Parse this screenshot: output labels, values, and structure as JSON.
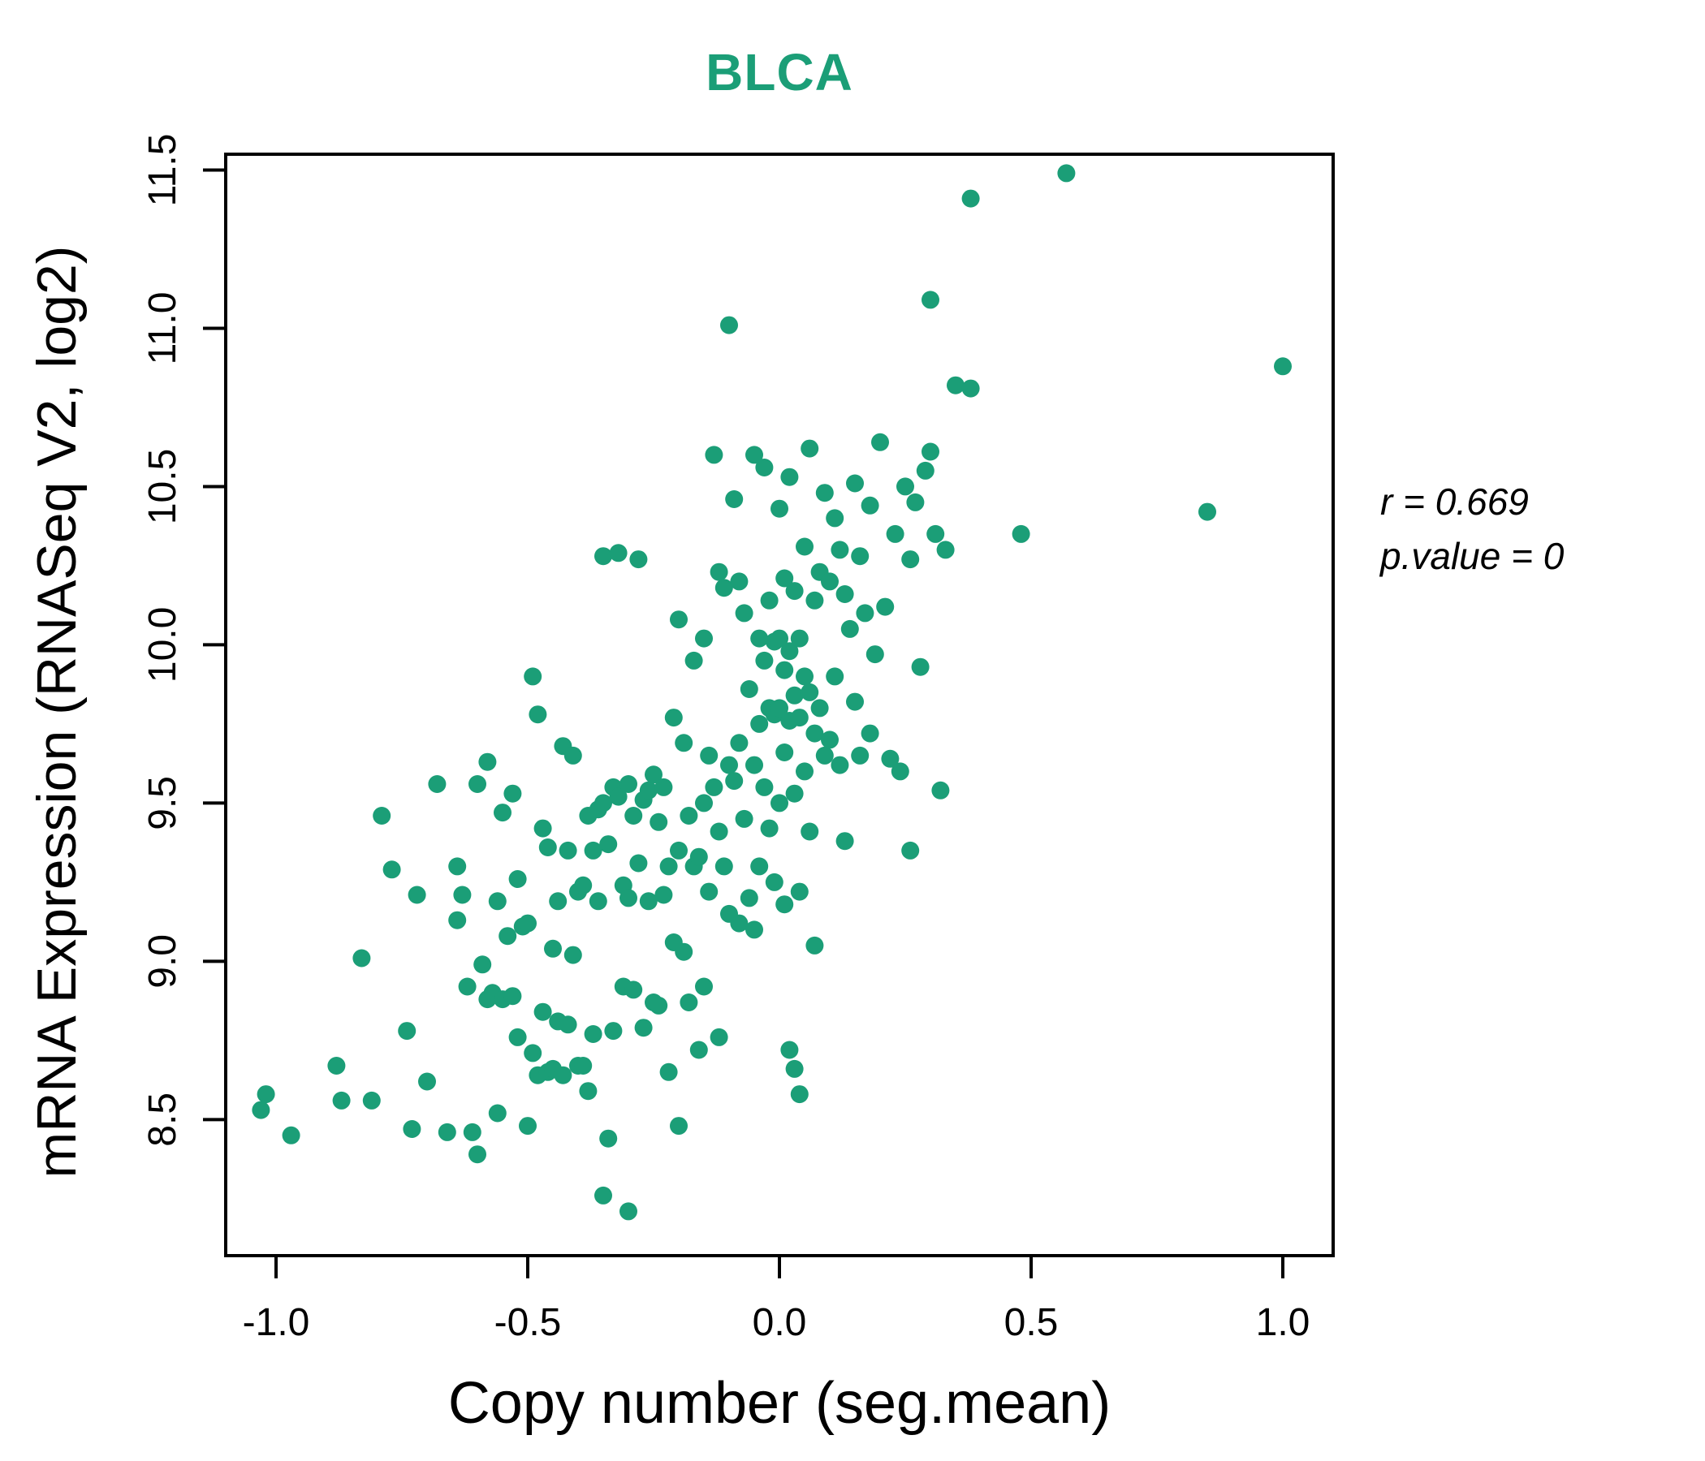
{
  "title": "BLCA",
  "colors": {
    "accent": "#1b9e77",
    "point": "#1b9e77",
    "axis": "#000000"
  },
  "annotation": {
    "line1": "r = 0.669",
    "line2": "p.value = 0"
  },
  "chart_data": {
    "type": "scatter",
    "title": "BLCA",
    "xlabel": "Copy number (seg.mean)",
    "ylabel": "mRNA Expression (RNASeq V2, log2)",
    "xlim": [
      -1.1,
      1.1
    ],
    "ylim": [
      8.07,
      11.55
    ],
    "x_ticks": [
      -1.0,
      -0.5,
      0.0,
      0.5,
      1.0
    ],
    "x_tick_labels": [
      "-1.0",
      "-0.5",
      "0.0",
      "0.5",
      "1.0"
    ],
    "y_ticks": [
      8.5,
      9.0,
      9.5,
      10.0,
      10.5,
      11.0,
      11.5
    ],
    "y_tick_labels": [
      "8.5",
      "9.0",
      "9.5",
      "10.0",
      "10.5",
      "11.0",
      "11.5"
    ],
    "grid": false,
    "legend": null,
    "annotations": [
      "r = 0.669",
      "p.value = 0"
    ],
    "series": [
      {
        "name": "samples",
        "color": "#1b9e77",
        "points": [
          [
            -1.03,
            8.53
          ],
          [
            -1.02,
            8.58
          ],
          [
            -0.97,
            8.45
          ],
          [
            -0.88,
            8.67
          ],
          [
            -0.87,
            8.56
          ],
          [
            -0.83,
            9.01
          ],
          [
            -0.81,
            8.56
          ],
          [
            -0.79,
            9.46
          ],
          [
            -0.77,
            9.29
          ],
          [
            -0.74,
            8.78
          ],
          [
            -0.73,
            8.47
          ],
          [
            -0.72,
            9.21
          ],
          [
            -0.7,
            8.62
          ],
          [
            -0.68,
            9.56
          ],
          [
            -0.66,
            8.46
          ],
          [
            -0.64,
            9.3
          ],
          [
            -0.64,
            9.13
          ],
          [
            -0.63,
            9.21
          ],
          [
            -0.62,
            8.92
          ],
          [
            -0.61,
            8.46
          ],
          [
            -0.6,
            8.39
          ],
          [
            -0.6,
            9.56
          ],
          [
            -0.59,
            8.99
          ],
          [
            -0.58,
            8.88
          ],
          [
            -0.58,
            9.63
          ],
          [
            -0.57,
            8.9
          ],
          [
            -0.56,
            9.19
          ],
          [
            -0.56,
            8.52
          ],
          [
            -0.55,
            9.47
          ],
          [
            -0.55,
            8.88
          ],
          [
            -0.54,
            9.08
          ],
          [
            -0.53,
            8.89
          ],
          [
            -0.53,
            9.53
          ],
          [
            -0.52,
            8.76
          ],
          [
            -0.52,
            9.26
          ],
          [
            -0.51,
            9.11
          ],
          [
            -0.5,
            8.48
          ],
          [
            -0.5,
            9.12
          ],
          [
            -0.49,
            8.71
          ],
          [
            -0.49,
            9.9
          ],
          [
            -0.48,
            8.64
          ],
          [
            -0.48,
            9.78
          ],
          [
            -0.47,
            8.84
          ],
          [
            -0.47,
            9.42
          ],
          [
            -0.46,
            8.65
          ],
          [
            -0.46,
            9.36
          ],
          [
            -0.45,
            8.66
          ],
          [
            -0.45,
            9.04
          ],
          [
            -0.44,
            8.81
          ],
          [
            -0.44,
            9.19
          ],
          [
            -0.43,
            9.68
          ],
          [
            -0.43,
            8.64
          ],
          [
            -0.42,
            9.35
          ],
          [
            -0.42,
            8.8
          ],
          [
            -0.41,
            9.65
          ],
          [
            -0.41,
            9.02
          ],
          [
            -0.4,
            8.67
          ],
          [
            -0.4,
            9.22
          ],
          [
            -0.39,
            9.24
          ],
          [
            -0.39,
            8.67
          ],
          [
            -0.38,
            9.46
          ],
          [
            -0.38,
            8.59
          ],
          [
            -0.37,
            9.35
          ],
          [
            -0.37,
            8.77
          ],
          [
            -0.36,
            9.48
          ],
          [
            -0.36,
            9.19
          ],
          [
            -0.35,
            8.26
          ],
          [
            -0.35,
            9.5
          ],
          [
            -0.35,
            10.28
          ],
          [
            -0.34,
            8.44
          ],
          [
            -0.34,
            9.37
          ],
          [
            -0.33,
            9.55
          ],
          [
            -0.33,
            8.78
          ],
          [
            -0.32,
            9.52
          ],
          [
            -0.32,
            10.29
          ],
          [
            -0.31,
            9.24
          ],
          [
            -0.31,
            8.92
          ],
          [
            -0.3,
            9.56
          ],
          [
            -0.3,
            8.21
          ],
          [
            -0.3,
            9.2
          ],
          [
            -0.29,
            9.46
          ],
          [
            -0.29,
            8.91
          ],
          [
            -0.28,
            10.27
          ],
          [
            -0.28,
            9.31
          ],
          [
            -0.27,
            9.51
          ],
          [
            -0.27,
            8.79
          ],
          [
            -0.26,
            9.54
          ],
          [
            -0.26,
            9.19
          ],
          [
            -0.25,
            9.59
          ],
          [
            -0.25,
            8.87
          ],
          [
            -0.24,
            9.44
          ],
          [
            -0.24,
            8.86
          ],
          [
            -0.23,
            9.55
          ],
          [
            -0.23,
            9.21
          ],
          [
            -0.22,
            9.3
          ],
          [
            -0.22,
            8.65
          ],
          [
            -0.21,
            9.77
          ],
          [
            -0.21,
            9.06
          ],
          [
            -0.2,
            10.08
          ],
          [
            -0.2,
            9.35
          ],
          [
            -0.2,
            8.48
          ],
          [
            -0.19,
            9.69
          ],
          [
            -0.19,
            9.03
          ],
          [
            -0.18,
            9.46
          ],
          [
            -0.18,
            8.87
          ],
          [
            -0.17,
            9.95
          ],
          [
            -0.17,
            9.3
          ],
          [
            -0.16,
            9.33
          ],
          [
            -0.16,
            8.72
          ],
          [
            -0.15,
            10.02
          ],
          [
            -0.15,
            9.5
          ],
          [
            -0.15,
            8.92
          ],
          [
            -0.14,
            9.65
          ],
          [
            -0.14,
            9.22
          ],
          [
            -0.13,
            10.6
          ],
          [
            -0.13,
            9.55
          ],
          [
            -0.12,
            10.23
          ],
          [
            -0.12,
            9.41
          ],
          [
            -0.12,
            8.76
          ],
          [
            -0.11,
            10.18
          ],
          [
            -0.11,
            9.3
          ],
          [
            -0.1,
            11.01
          ],
          [
            -0.1,
            9.62
          ],
          [
            -0.1,
            9.15
          ],
          [
            -0.09,
            10.46
          ],
          [
            -0.09,
            9.57
          ],
          [
            -0.08,
            10.2
          ],
          [
            -0.08,
            9.69
          ],
          [
            -0.08,
            9.12
          ],
          [
            -0.07,
            10.1
          ],
          [
            -0.07,
            9.45
          ],
          [
            -0.06,
            9.86
          ],
          [
            -0.06,
            9.2
          ],
          [
            -0.05,
            10.6
          ],
          [
            -0.05,
            9.62
          ],
          [
            -0.05,
            9.1
          ],
          [
            -0.04,
            10.02
          ],
          [
            -0.04,
            9.75
          ],
          [
            -0.04,
            9.3
          ],
          [
            -0.03,
            10.56
          ],
          [
            -0.03,
            9.95
          ],
          [
            -0.03,
            9.55
          ],
          [
            -0.02,
            10.14
          ],
          [
            -0.02,
            9.8
          ],
          [
            -0.02,
            9.42
          ],
          [
            -0.01,
            10.01
          ],
          [
            -0.01,
            9.78
          ],
          [
            -0.01,
            9.25
          ],
          [
            0.0,
            10.43
          ],
          [
            0.0,
            10.02
          ],
          [
            0.0,
            9.8
          ],
          [
            0.0,
            9.5
          ],
          [
            0.01,
            10.21
          ],
          [
            0.01,
            9.92
          ],
          [
            0.01,
            9.66
          ],
          [
            0.01,
            9.18
          ],
          [
            0.02,
            10.53
          ],
          [
            0.02,
            9.98
          ],
          [
            0.02,
            9.76
          ],
          [
            0.02,
            8.72
          ],
          [
            0.03,
            10.17
          ],
          [
            0.03,
            9.84
          ],
          [
            0.03,
            9.53
          ],
          [
            0.03,
            8.66
          ],
          [
            0.04,
            10.02
          ],
          [
            0.04,
            9.77
          ],
          [
            0.04,
            9.22
          ],
          [
            0.04,
            8.58
          ],
          [
            0.05,
            10.31
          ],
          [
            0.05,
            9.9
          ],
          [
            0.05,
            9.6
          ],
          [
            0.06,
            10.62
          ],
          [
            0.06,
            9.85
          ],
          [
            0.06,
            9.41
          ],
          [
            0.07,
            10.14
          ],
          [
            0.07,
            9.72
          ],
          [
            0.07,
            9.05
          ],
          [
            0.08,
            10.23
          ],
          [
            0.08,
            9.8
          ],
          [
            0.09,
            10.48
          ],
          [
            0.09,
            9.65
          ],
          [
            0.1,
            10.2
          ],
          [
            0.1,
            9.7
          ],
          [
            0.11,
            10.4
          ],
          [
            0.11,
            9.9
          ],
          [
            0.12,
            10.3
          ],
          [
            0.12,
            9.62
          ],
          [
            0.13,
            10.16
          ],
          [
            0.13,
            9.38
          ],
          [
            0.14,
            10.05
          ],
          [
            0.15,
            10.51
          ],
          [
            0.15,
            9.82
          ],
          [
            0.16,
            10.28
          ],
          [
            0.16,
            9.65
          ],
          [
            0.17,
            10.1
          ],
          [
            0.18,
            9.72
          ],
          [
            0.18,
            10.44
          ],
          [
            0.19,
            9.97
          ],
          [
            0.2,
            10.64
          ],
          [
            0.21,
            10.12
          ],
          [
            0.22,
            9.64
          ],
          [
            0.23,
            10.35
          ],
          [
            0.24,
            9.6
          ],
          [
            0.25,
            10.5
          ],
          [
            0.26,
            10.27
          ],
          [
            0.26,
            9.35
          ],
          [
            0.27,
            10.45
          ],
          [
            0.28,
            9.93
          ],
          [
            0.29,
            10.55
          ],
          [
            0.3,
            11.09
          ],
          [
            0.3,
            10.61
          ],
          [
            0.31,
            10.35
          ],
          [
            0.32,
            9.54
          ],
          [
            0.33,
            10.3
          ],
          [
            0.35,
            10.82
          ],
          [
            0.38,
            10.81
          ],
          [
            0.38,
            11.41
          ],
          [
            0.48,
            10.35
          ],
          [
            0.57,
            11.49
          ],
          [
            0.85,
            10.42
          ],
          [
            1.0,
            10.88
          ]
        ]
      }
    ]
  }
}
